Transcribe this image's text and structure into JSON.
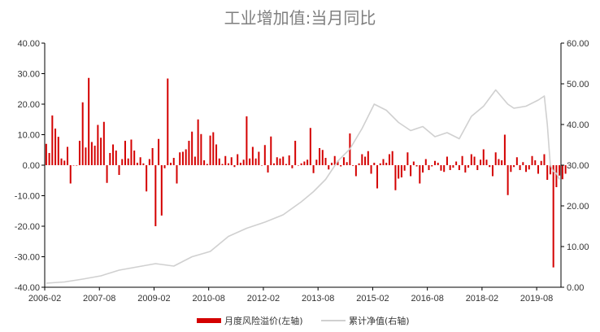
{
  "chart_data": {
    "type": "bar+line",
    "title": "工业增加值:当月同比",
    "colors": {
      "bars": "#d40000",
      "line": "#d0d0d0",
      "axis": "#000000"
    },
    "y_left": {
      "min": -40,
      "max": 40,
      "step": 10,
      "tick_labels": [
        "-40.00",
        "-30.00",
        "-20.00",
        "-10.00",
        "0.00",
        "10.00",
        "20.00",
        "30.00",
        "40.00"
      ]
    },
    "y_right": {
      "min": 0,
      "max": 60,
      "step": 10,
      "tick_labels": [
        "0.00",
        "10.00",
        "20.00",
        "30.00",
        "40.00",
        "50.00",
        "60.00"
      ]
    },
    "x_tick_labels": [
      "2006-02",
      "2007-08",
      "2009-02",
      "2010-08",
      "2012-02",
      "2013-08",
      "2015-02",
      "2016-08",
      "2018-02",
      "2019-08"
    ],
    "x_tick_months": [
      0,
      18,
      36,
      54,
      72,
      90,
      108,
      126,
      144,
      162
    ],
    "n_months": 170,
    "legend": {
      "bars": "月度风险溢价(左轴)",
      "line": "累计净值(右轴)"
    },
    "series": [
      {
        "name": "月度风险溢价(左轴)",
        "axis": "left",
        "type": "bar",
        "values": [
          7.0,
          4.0,
          16.3,
          12.0,
          9.3,
          2.2,
          1.5,
          6.0,
          -6.0,
          0.0,
          0.0,
          8.0,
          20.6,
          5.8,
          28.6,
          7.6,
          6.4,
          13.2,
          9.0,
          14.2,
          -5.8,
          4.0,
          6.8,
          4.8,
          -3.2,
          2.0,
          8.0,
          2.2,
          8.4,
          4.8,
          0.8,
          2.6,
          0.6,
          -8.6,
          2.0,
          5.6,
          -20.0,
          8.6,
          -16.5,
          -1.0,
          28.4,
          0.8,
          2.4,
          -6.0,
          4.2,
          4.4,
          5.2,
          8.0,
          11.0,
          2.8,
          15.0,
          10.2,
          1.6,
          0.4,
          9.7,
          10.8,
          6.8,
          2.2,
          0.4,
          3.0,
          0.6,
          2.6,
          -0.6,
          3.6,
          0.8,
          1.8,
          16.0,
          2.2,
          6.0,
          2.2,
          4.4,
          0.0,
          6.6,
          -2.4,
          9.4,
          0.6,
          2.6,
          2.2,
          2.8,
          0.4,
          3.2,
          -1.0,
          8.0,
          0.0,
          0.6,
          1.2,
          1.8,
          12.2,
          -2.6,
          1.8,
          5.6,
          5.0,
          2.4,
          -1.4,
          0.8,
          3.0,
          1.4,
          -0.4,
          2.6,
          1.0,
          10.4,
          -0.2,
          -3.6,
          0.6,
          3.6,
          2.8,
          4.6,
          -2.8,
          0.8,
          -7.6,
          0.6,
          2.0,
          0.8,
          3.6,
          4.6,
          -8.2,
          -4.4,
          -4.0,
          -1.8,
          4.2,
          -3.6,
          1.2,
          -0.4,
          -6.0,
          -2.4,
          2.0,
          -1.6,
          -0.4,
          1.4,
          0.8,
          -1.8,
          -2.2,
          2.8,
          -1.6,
          -0.8,
          1.2,
          -1.6,
          3.0,
          -2.4,
          -0.8,
          3.6,
          2.8,
          -1.6,
          1.8,
          5.2,
          1.8,
          -0.6,
          -3.6,
          4.2,
          2.0,
          1.6,
          10.0,
          -9.8,
          -2.2,
          -0.6,
          2.6,
          -1.6,
          1.0,
          -2.2,
          -1.4,
          3.0,
          1.6,
          -2.8,
          1.4,
          3.6,
          -4.8,
          -3.0,
          -33.5,
          -7.2,
          -3.4,
          -4.6,
          -2.8
        ]
      },
      {
        "name": "累计净值(右轴)",
        "axis": "right",
        "type": "line",
        "points": [
          [
            0,
            1.0
          ],
          [
            6,
            1.3
          ],
          [
            12,
            2.0
          ],
          [
            18,
            2.8
          ],
          [
            24,
            4.2
          ],
          [
            30,
            5.0
          ],
          [
            36,
            5.8
          ],
          [
            42,
            5.2
          ],
          [
            48,
            7.5
          ],
          [
            54,
            8.8
          ],
          [
            60,
            12.5
          ],
          [
            66,
            14.5
          ],
          [
            72,
            16.0
          ],
          [
            78,
            17.8
          ],
          [
            84,
            21.0
          ],
          [
            88,
            23.5
          ],
          [
            92,
            26.5
          ],
          [
            96,
            31.0
          ],
          [
            100,
            34.0
          ],
          [
            104,
            39.0
          ],
          [
            108,
            45.0
          ],
          [
            112,
            43.5
          ],
          [
            116,
            40.5
          ],
          [
            120,
            38.5
          ],
          [
            124,
            39.5
          ],
          [
            128,
            37.0
          ],
          [
            132,
            38.0
          ],
          [
            136,
            36.5
          ],
          [
            140,
            42.0
          ],
          [
            144,
            44.5
          ],
          [
            148,
            48.5
          ],
          [
            152,
            45.0
          ],
          [
            154,
            44.0
          ],
          [
            158,
            44.5
          ],
          [
            162,
            46.0
          ],
          [
            164,
            47.0
          ],
          [
            165,
            40.0
          ],
          [
            166,
            30.0
          ],
          [
            167,
            28.5
          ],
          [
            168,
            28.0
          ],
          [
            169,
            26.5
          ]
        ]
      }
    ]
  }
}
